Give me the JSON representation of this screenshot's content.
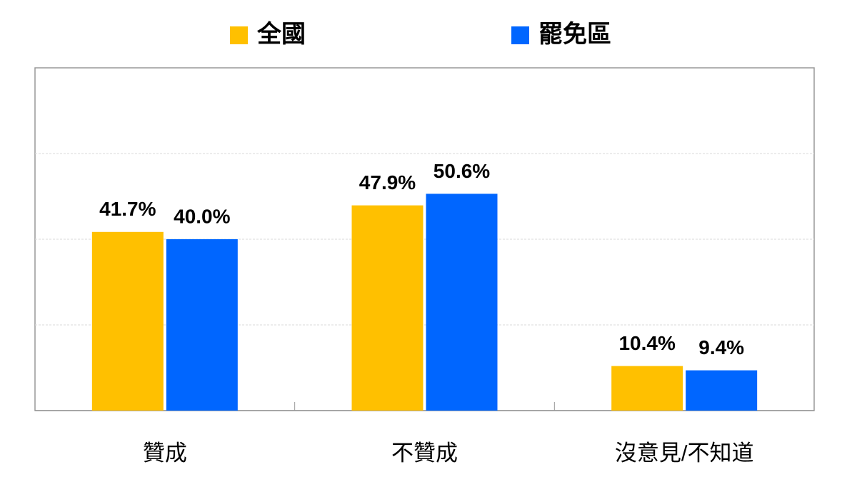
{
  "chart_data": {
    "type": "bar",
    "categories": [
      "贊成",
      "不贊成",
      "沒意見/不知道"
    ],
    "series": [
      {
        "name": "全國",
        "color": "#FFC000",
        "values": [
          41.7,
          47.9,
          10.4
        ],
        "value_labels": [
          "41.7%",
          "47.9%",
          "10.4%"
        ]
      },
      {
        "name": "罷免區",
        "color": "#0066FF",
        "values": [
          40.0,
          50.6,
          9.4
        ],
        "value_labels": [
          "40.0%",
          "50.6%",
          "9.4%"
        ]
      }
    ],
    "ylim": [
      0,
      80
    ],
    "yticks": [
      0,
      20,
      40,
      60,
      80
    ],
    "grid": true,
    "legend": "top"
  }
}
